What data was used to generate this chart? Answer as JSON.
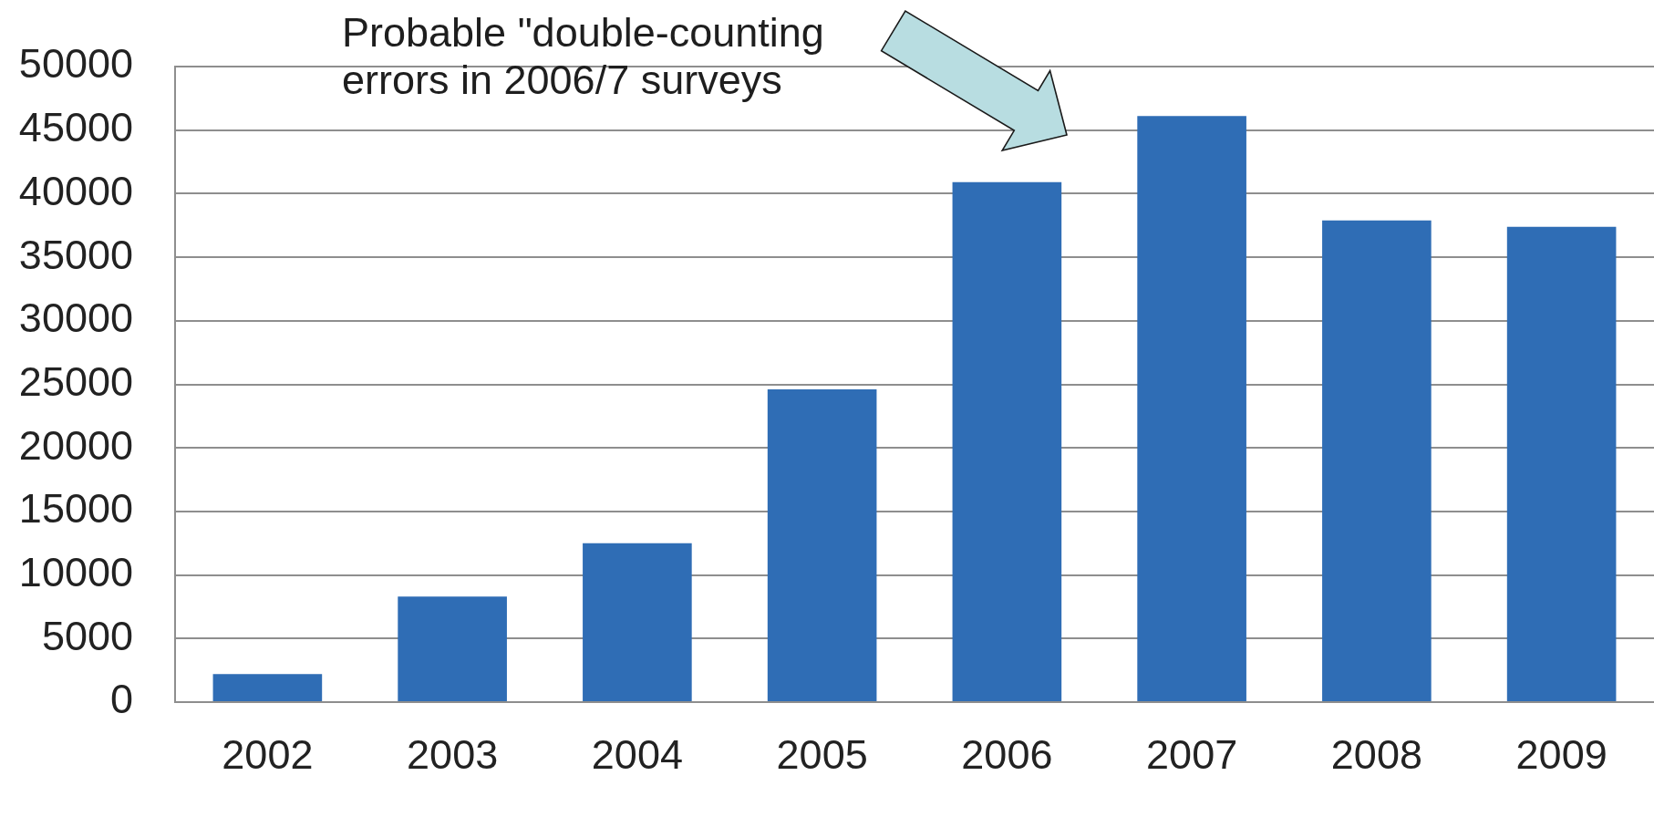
{
  "chart_data": {
    "type": "bar",
    "categories": [
      "2002",
      "2003",
      "2004",
      "2005",
      "2006",
      "2007",
      "2008",
      "2009"
    ],
    "values": [
      2200,
      8300,
      12500,
      24600,
      40900,
      46100,
      37900,
      37400
    ],
    "color": "#2f6db5",
    "ylim": [
      0,
      50000
    ],
    "yticks": [
      0,
      5000,
      10000,
      15000,
      20000,
      25000,
      30000,
      35000,
      40000,
      45000,
      50000
    ],
    "grid": "y",
    "annotations": [
      "Probable \"double-counting errors in 2006/7 surveys"
    ]
  }
}
